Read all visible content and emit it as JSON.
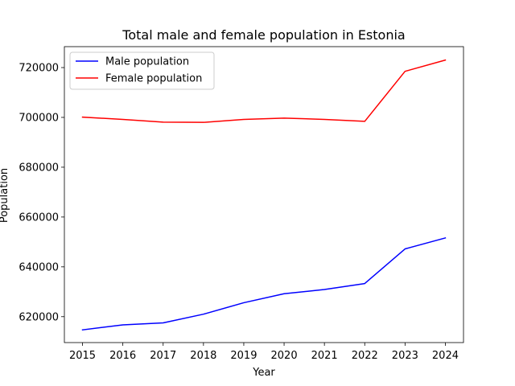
{
  "chart_data": {
    "type": "line",
    "title": "Total male and female population in Estonia",
    "xlabel": "Year",
    "ylabel": "Population",
    "x": [
      2015,
      2016,
      2017,
      2018,
      2019,
      2020,
      2021,
      2022,
      2023,
      2024
    ],
    "xlim": [
      2014.55,
      2024.45
    ],
    "ylim": [
      609600,
      728400
    ],
    "yticks": [
      620000,
      640000,
      660000,
      680000,
      700000,
      720000
    ],
    "grid": false,
    "legend_position": "upper-left",
    "series": [
      {
        "name": "Male population",
        "color": "#0000ff",
        "values": [
          614700,
          616700,
          617500,
          621000,
          625600,
          629200,
          630900,
          633300,
          647200,
          651600
        ]
      },
      {
        "name": "Female population",
        "color": "#ff0000",
        "values": [
          700100,
          699200,
          698100,
          698000,
          699200,
          699700,
          699200,
          698400,
          718500,
          723000
        ]
      }
    ]
  }
}
